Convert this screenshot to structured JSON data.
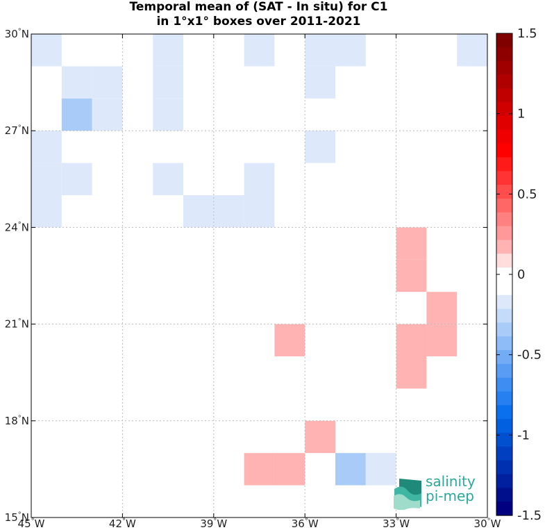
{
  "title_line1": "Temporal mean of (SAT - In situ) for C1",
  "title_line2": "in 1°x1° boxes over 2011-2021",
  "logo": {
    "line1": "salinity",
    "line2": "pi-mep"
  },
  "chart_data": {
    "type": "heatmap",
    "title": "Temporal mean of (SAT - In situ) for C1 in 1°x1° boxes over 2011-2021",
    "xlim": [
      -45,
      -30
    ],
    "ylim": [
      15,
      30
    ],
    "xticks": [
      {
        "value": -45,
        "deg": "45",
        "hemi": "W"
      },
      {
        "value": -42,
        "deg": "42",
        "hemi": "W"
      },
      {
        "value": -39,
        "deg": "39",
        "hemi": "W"
      },
      {
        "value": -36,
        "deg": "36",
        "hemi": "W"
      },
      {
        "value": -33,
        "deg": "33",
        "hemi": "W"
      },
      {
        "value": -30,
        "deg": "30",
        "hemi": "W"
      }
    ],
    "yticks": [
      {
        "value": 15,
        "deg": "15",
        "hemi": "N"
      },
      {
        "value": 18,
        "deg": "18",
        "hemi": "N"
      },
      {
        "value": 21,
        "deg": "21",
        "hemi": "N"
      },
      {
        "value": 24,
        "deg": "24",
        "hemi": "N"
      },
      {
        "value": 27,
        "deg": "27",
        "hemi": "N"
      },
      {
        "value": 30,
        "deg": "30",
        "hemi": "N"
      }
    ],
    "grid": true,
    "colorbar": {
      "range": [
        -1.5,
        1.5
      ],
      "ticks": [
        "1.5",
        "1",
        "0.5",
        "0",
        "-0.5",
        "-1",
        "-1.5"
      ],
      "tick_values": [
        1.5,
        1,
        0.5,
        0,
        -0.5,
        -1,
        -1.5
      ],
      "colors_top_to_bottom": [
        "#800000",
        "#8e0000",
        "#a00000",
        "#b00000",
        "#c00000",
        "#d00000",
        "#e00000",
        "#f00000",
        "#ff0000",
        "#ff1a1a",
        "#ff3333",
        "#ff4d4d",
        "#ff6666",
        "#ff8080",
        "#ff9999",
        "#ffb3b3",
        "#ffdddd",
        "#ffffff",
        "#ffffff",
        "#dde9fa",
        "#c4dcfa",
        "#a9cbf7",
        "#8ebcf7",
        "#73acf5",
        "#589cf3",
        "#3d8df2",
        "#2780f0",
        "#0a70ee",
        "#0060e0",
        "#0050d0",
        "#0040c0",
        "#0030b0",
        "#0020a0",
        "#00108c",
        "#000080"
      ]
    },
    "cells": [
      {
        "lon": -45,
        "lat": 29,
        "value": -0.15
      },
      {
        "lon": -44,
        "lat": 28,
        "value": -0.2
      },
      {
        "lon": -43,
        "lat": 28,
        "value": -0.2
      },
      {
        "lon": -44,
        "lat": 27,
        "value": -0.3
      },
      {
        "lon": -43,
        "lat": 27,
        "value": -0.2
      },
      {
        "lon": -41,
        "lat": 29,
        "value": -0.15
      },
      {
        "lon": -41,
        "lat": 28,
        "value": -0.15
      },
      {
        "lon": -41,
        "lat": 27,
        "value": -0.15
      },
      {
        "lon": -38,
        "lat": 29,
        "value": -0.15
      },
      {
        "lon": -36,
        "lat": 29,
        "value": -0.15
      },
      {
        "lon": -35,
        "lat": 29,
        "value": -0.15
      },
      {
        "lon": -36,
        "lat": 28,
        "value": -0.15
      },
      {
        "lon": -31,
        "lat": 29,
        "value": -0.15
      },
      {
        "lon": -30.5,
        "lat": 29,
        "value": -0.15
      },
      {
        "lon": -45,
        "lat": 26,
        "value": -0.15
      },
      {
        "lon": -45,
        "lat": 25,
        "value": -0.15
      },
      {
        "lon": -44,
        "lat": 25,
        "value": -0.15
      },
      {
        "lon": -45,
        "lat": 24,
        "value": -0.15
      },
      {
        "lon": -36,
        "lat": 26,
        "value": -0.15
      },
      {
        "lon": -41,
        "lat": 25,
        "value": -0.15
      },
      {
        "lon": -38,
        "lat": 25,
        "value": -0.15
      },
      {
        "lon": -40,
        "lat": 24,
        "value": -0.15
      },
      {
        "lon": -39,
        "lat": 24,
        "value": -0.15
      },
      {
        "lon": -38,
        "lat": 24,
        "value": -0.15
      },
      {
        "lon": -33,
        "lat": 23,
        "value": 0.2
      },
      {
        "lon": -33,
        "lat": 22,
        "value": 0.2
      },
      {
        "lon": -32,
        "lat": 21,
        "value": 0.2
      },
      {
        "lon": -37,
        "lat": 20,
        "value": 0.2
      },
      {
        "lon": -33,
        "lat": 20,
        "value": 0.2
      },
      {
        "lon": -32,
        "lat": 20,
        "value": 0.2
      },
      {
        "lon": -33,
        "lat": 19,
        "value": 0.2
      },
      {
        "lon": -36,
        "lat": 17,
        "value": 0.2
      },
      {
        "lon": -38,
        "lat": 16,
        "value": 0.2
      },
      {
        "lon": -37,
        "lat": 16,
        "value": 0.2
      },
      {
        "lon": -35,
        "lat": 16,
        "value": -0.3
      },
      {
        "lon": -34,
        "lat": 16,
        "value": -0.15
      }
    ]
  }
}
